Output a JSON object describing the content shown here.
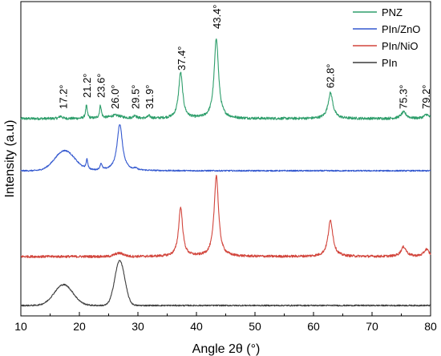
{
  "chart_data": {
    "type": "line",
    "xlabel": "Angle 2θ (°)",
    "ylabel": "Intensity (a.u)",
    "xlim": [
      10,
      80
    ],
    "x_ticks": [
      10,
      20,
      30,
      40,
      50,
      60,
      70,
      80
    ],
    "x_tick_labels": [
      "10",
      "20",
      "30",
      "40",
      "50",
      "60",
      "70",
      "80"
    ],
    "grid": false,
    "y_ticks_shown": false,
    "legend_position": "top-right",
    "series": [
      {
        "name": "PNZ",
        "color": "#2e9e6b",
        "baseline": 148,
        "noise": 1.6,
        "background": [],
        "peaks": [
          {
            "pos": 16.8,
            "h": 3,
            "w": 0.3
          },
          {
            "pos": 21.2,
            "h": 16,
            "w": 0.18
          },
          {
            "pos": 23.6,
            "h": 16,
            "w": 0.18
          },
          {
            "pos": 26.2,
            "h": 4,
            "w": 1.2
          },
          {
            "pos": 29.5,
            "h": 4,
            "w": 0.25
          },
          {
            "pos": 31.9,
            "h": 3,
            "w": 0.3
          },
          {
            "pos": 37.3,
            "h": 57,
            "w": 0.42
          },
          {
            "pos": 43.4,
            "h": 100,
            "w": 0.45
          },
          {
            "pos": 62.9,
            "h": 32,
            "w": 0.5
          },
          {
            "pos": 75.4,
            "h": 8,
            "w": 0.55
          },
          {
            "pos": 79.3,
            "h": 5,
            "w": 0.5
          }
        ]
      },
      {
        "name": "PIn/ZnO",
        "color": "#3358cf",
        "baseline": 213,
        "noise": 0.8,
        "background": [
          {
            "pos": 17.5,
            "h": 25,
            "w": 1.7
          }
        ],
        "peaks": [
          {
            "pos": 21.3,
            "h": 12,
            "w": 0.18
          },
          {
            "pos": 23.7,
            "h": 8,
            "w": 0.2
          },
          {
            "pos": 26.9,
            "h": 58,
            "w": 0.55
          },
          {
            "pos": 29.6,
            "h": 2,
            "w": 0.25
          }
        ]
      },
      {
        "name": "PIn/NiO",
        "color": "#d2453c",
        "baseline": 320,
        "noise": 1.5,
        "background": [
          {
            "pos": 26.8,
            "h": 4,
            "w": 0.8
          }
        ],
        "peaks": [
          {
            "pos": 37.3,
            "h": 61,
            "w": 0.42
          },
          {
            "pos": 43.4,
            "h": 101,
            "w": 0.45
          },
          {
            "pos": 62.9,
            "h": 45,
            "w": 0.5
          },
          {
            "pos": 75.4,
            "h": 12,
            "w": 0.55
          },
          {
            "pos": 79.3,
            "h": 9,
            "w": 0.5
          }
        ]
      },
      {
        "name": "PIn",
        "color": "#3c3c3c",
        "baseline": 381,
        "noise": 0.8,
        "background": [
          {
            "pos": 17.3,
            "h": 26,
            "w": 1.6
          },
          {
            "pos": 26.9,
            "h": 56,
            "w": 0.85
          }
        ],
        "peaks": []
      }
    ],
    "annotations": [
      {
        "text": "17.2°",
        "x": 17.2
      },
      {
        "text": "21.2°",
        "x": 21.2
      },
      {
        "text": "23.6°",
        "x": 23.6
      },
      {
        "text": "26.0°",
        "x": 26.0
      },
      {
        "text": "29.5°",
        "x": 29.5
      },
      {
        "text": "31.9°",
        "x": 31.9
      },
      {
        "text": "37.4°",
        "x": 37.4
      },
      {
        "text": "43.4°",
        "x": 43.4
      },
      {
        "text": "62.8°",
        "x": 62.8
      },
      {
        "text": "75.3°",
        "x": 75.3
      },
      {
        "text": "79.2°",
        "x": 79.2
      }
    ]
  }
}
